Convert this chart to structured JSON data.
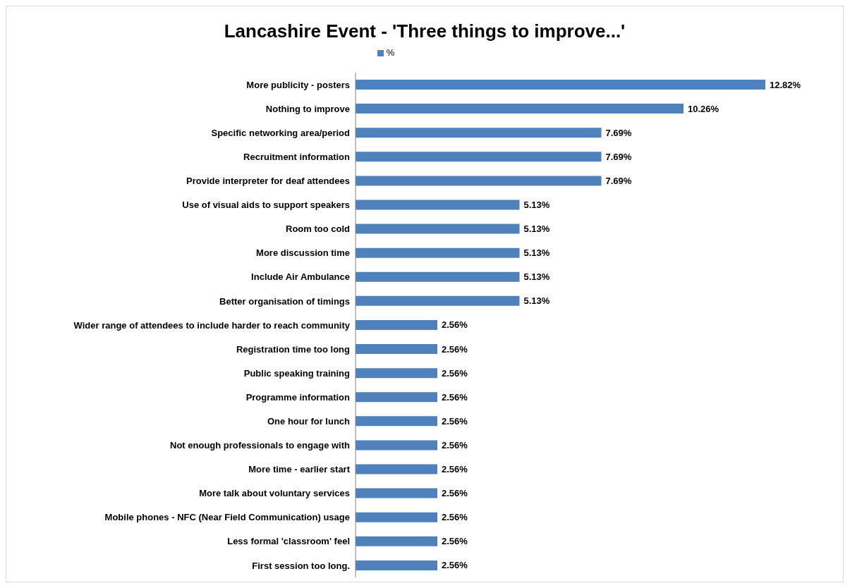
{
  "chart_data": {
    "type": "bar",
    "orientation": "horizontal",
    "title": "Lancashire Event - 'Three things to improve...'",
    "categories": [
      "More publicity - posters",
      "Nothing to improve",
      "Specific networking area/period",
      "Recruitment information",
      "Provide interpreter for deaf attendees",
      "Use of visual aids to support speakers",
      "Room too cold",
      "More discussion time",
      "Include Air Ambulance",
      "Better organisation of timings",
      "Wider range of attendees to include harder to reach community",
      "Registration time too long",
      "Public speaking training",
      "Programme information",
      "One hour for lunch",
      "Not enough professionals to engage with",
      "More time - earlier start",
      "More talk about voluntary services",
      "Mobile phones - NFC (Near Field Communication) usage",
      "Less formal 'classroom' feel",
      "First session too long."
    ],
    "series": [
      {
        "name": "%",
        "color": "#4f81bd",
        "values": [
          12.82,
          10.26,
          7.69,
          7.69,
          7.69,
          5.13,
          5.13,
          5.13,
          5.13,
          5.13,
          2.56,
          2.56,
          2.56,
          2.56,
          2.56,
          2.56,
          2.56,
          2.56,
          2.56,
          2.56,
          2.56
        ],
        "value_labels": [
          "12.82%",
          "10.26%",
          "7.69%",
          "7.69%",
          "7.69%",
          "5.13%",
          "5.13%",
          "5.13%",
          "5.13%",
          "5.13%",
          "2.56%",
          "2.56%",
          "2.56%",
          "2.56%",
          "2.56%",
          "2.56%",
          "2.56%",
          "2.56%",
          "2.56%",
          "2.56%",
          "2.56%"
        ]
      }
    ],
    "legend": "top",
    "grid": false
  }
}
